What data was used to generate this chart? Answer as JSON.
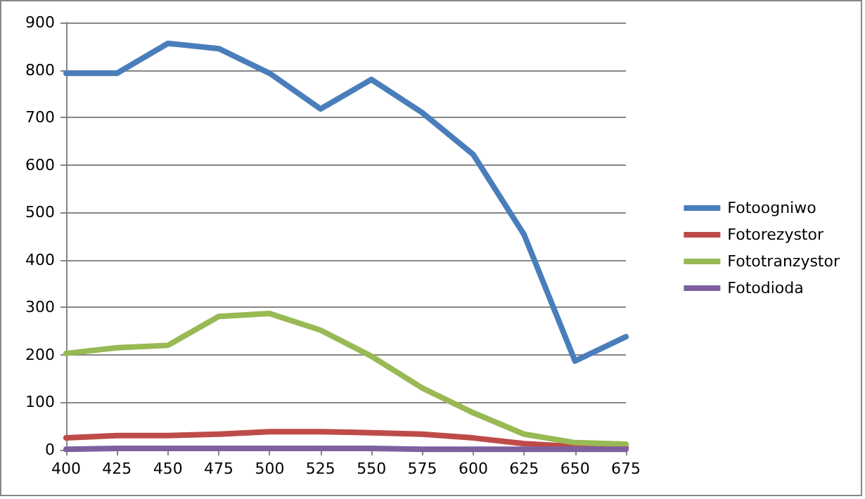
{
  "chart_data": {
    "type": "line",
    "categories": [
      "400",
      "425",
      "450",
      "475",
      "500",
      "525",
      "550",
      "575",
      "600",
      "625",
      "650",
      "675"
    ],
    "series": [
      {
        "name": "Fotoogniwo",
        "color": "#4a7ebb",
        "values": [
          793,
          793,
          856,
          845,
          793,
          718,
          780,
          710,
          622,
          453,
          187,
          238
        ]
      },
      {
        "name": "Fotorezystor",
        "color": "#be4b48",
        "values": [
          25,
          30,
          30,
          33,
          38,
          38,
          36,
          33,
          25,
          13,
          7,
          5
        ]
      },
      {
        "name": "Fototranzystor",
        "color": "#98b954",
        "values": [
          203,
          215,
          220,
          281,
          287,
          252,
          197,
          130,
          78,
          33,
          15,
          12
        ]
      },
      {
        "name": "Fotodioda",
        "color": "#7d60a0",
        "values": [
          1,
          3,
          3,
          3,
          3,
          3,
          3,
          1,
          1,
          1,
          1,
          1
        ]
      }
    ],
    "ylim": [
      0,
      900
    ],
    "yticks": [
      0,
      100,
      200,
      300,
      400,
      500,
      600,
      700,
      800,
      900
    ],
    "grid": "y",
    "legend": "right",
    "marker": "none"
  }
}
